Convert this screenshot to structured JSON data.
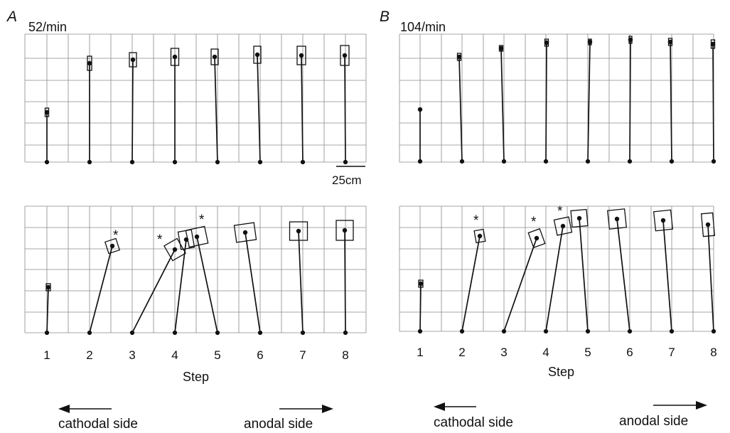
{
  "panels": [
    {
      "letter": "A",
      "rate": "52/min",
      "tick_labels": [
        "1",
        "2",
        "3",
        "4",
        "5",
        "6",
        "7",
        "8"
      ],
      "xlabel": "Step",
      "scale_label": "25cm",
      "cathodal_label": "cathodal side",
      "anodal_label": "anodal side",
      "star": "*"
    },
    {
      "letter": "B",
      "rate": "104/min",
      "tick_labels": [
        "1",
        "2",
        "3",
        "4",
        "5",
        "6",
        "7",
        "8"
      ],
      "xlabel": "Step",
      "cathodal_label": "cathodal side",
      "anodal_label": "anodal side",
      "star": "*"
    }
  ]
}
